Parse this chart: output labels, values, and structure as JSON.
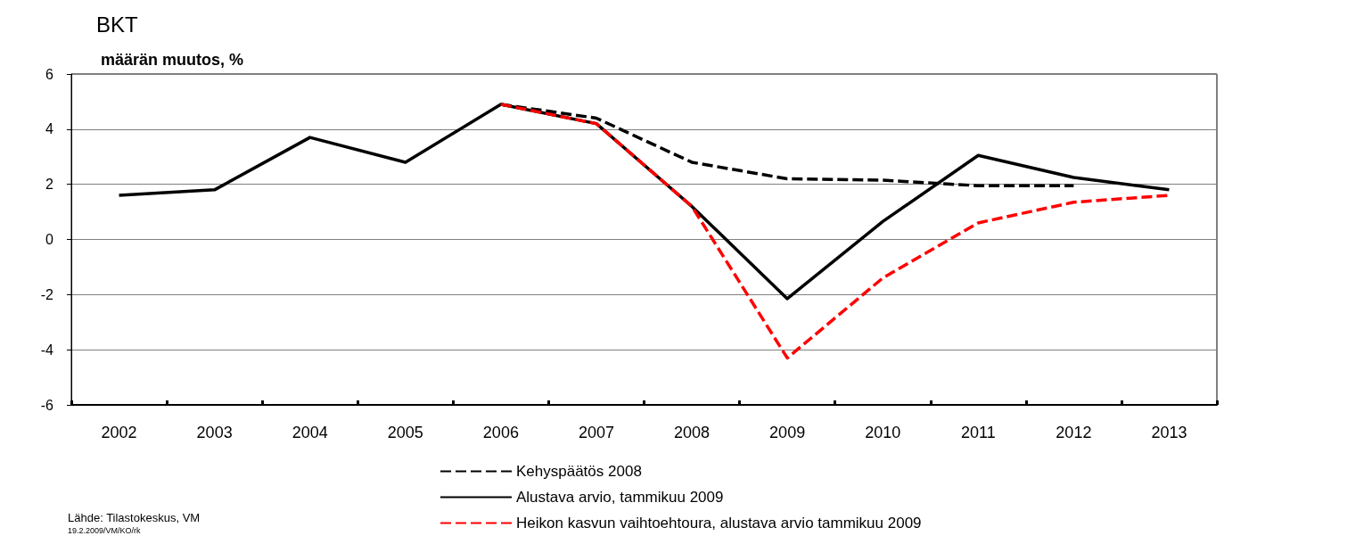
{
  "chart_data": {
    "type": "line",
    "title": "BKT",
    "ylabel": "määrän muutos, %",
    "categories": [
      "2002",
      "2003",
      "2004",
      "2005",
      "2006",
      "2007",
      "2008",
      "2009",
      "2010",
      "2011",
      "2012",
      "2013"
    ],
    "series": [
      {
        "name": "Kehyspäätös 2008",
        "color": "#000000",
        "line_style": "dashed",
        "values": [
          null,
          null,
          null,
          null,
          4.9,
          4.4,
          2.8,
          2.2,
          2.15,
          1.95,
          1.95,
          null
        ]
      },
      {
        "name": "Alustava arvio, tammikuu 2009",
        "color": "#000000",
        "line_style": "solid",
        "values": [
          1.6,
          1.8,
          3.7,
          2.8,
          4.9,
          4.2,
          1.2,
          -2.15,
          0.65,
          3.05,
          2.25,
          1.8
        ]
      },
      {
        "name": "Heikon kasvun vaihtoehtoura, alustava arvio tammikuu 2009",
        "color": "#ff0000",
        "line_style": "dashed",
        "values": [
          null,
          null,
          null,
          null,
          4.9,
          4.2,
          1.2,
          -4.3,
          -1.4,
          0.6,
          1.35,
          1.6
        ]
      }
    ],
    "ylim": [
      -6,
      6
    ],
    "yticks": [
      -6,
      -4,
      -2,
      0,
      2,
      4,
      6
    ],
    "grid": "y",
    "legend": "bottom",
    "marker": "none",
    "annotations": [
      "Lähde: Tilastokeskus, VM",
      "19.2.2009/VM/KO/rk"
    ]
  }
}
